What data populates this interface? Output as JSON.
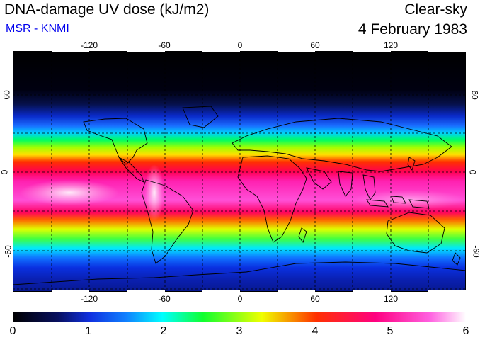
{
  "header": {
    "title": "DNA-damage UV dose (kJ/m2)",
    "source": "MSR - KNMI",
    "mode": "Clear-sky",
    "date": "4 February 1983"
  },
  "map": {
    "projection": "equirectangular",
    "lon_ticks": [
      "-120",
      "-60",
      "0",
      "60",
      "120"
    ],
    "lat_ticks": [
      "60",
      "0",
      "-60"
    ],
    "lon_tick_values": [
      -120,
      -60,
      0,
      60,
      120
    ],
    "lat_tick_values": [
      60,
      0,
      -60
    ],
    "gridlines": "dashed every 30 degrees"
  },
  "colorbar": {
    "labels": [
      "0",
      "1",
      "2",
      "3",
      "4",
      "5",
      "6"
    ],
    "min": 0,
    "max": 6,
    "colors": [
      "#000000",
      "#0a1a90",
      "#1040ff",
      "#00d0ff",
      "#10ff30",
      "#f0ff00",
      "#ff3000",
      "#ff0080",
      "#ffffff"
    ]
  }
}
